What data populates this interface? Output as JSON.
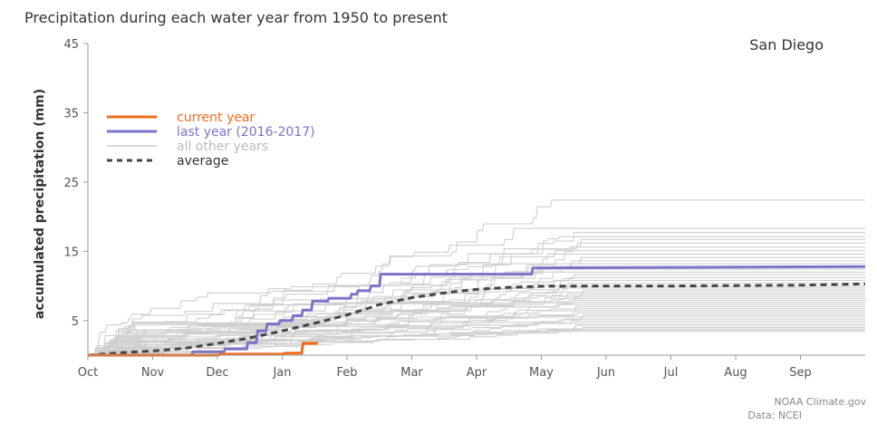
{
  "chart_data": {
    "type": "line",
    "title": "Precipitation during each water year from 1950 to present",
    "location": "San Diego",
    "ylabel": "accumulated precipitation (mm)",
    "xlabel": "",
    "ylim": [
      0,
      45
    ],
    "yticks": [
      5,
      15,
      25,
      35,
      45
    ],
    "x_unit": "months since Oct 1",
    "xlim": [
      0,
      12
    ],
    "xtick_labels": [
      "Oct",
      "Nov",
      "Dec",
      "Jan",
      "Feb",
      "Mar",
      "Apr",
      "May",
      "Jun",
      "Jul",
      "Aug",
      "Sep"
    ],
    "legend": {
      "placement": "top-left",
      "entries": [
        {
          "label": "current year",
          "color": "#f26c1b",
          "style": "solid"
        },
        {
          "label": "last year (2016-2017)",
          "color": "#7b74c9",
          "style": "solid"
        },
        {
          "label": "all other years",
          "color": "#cccccc",
          "style": "solid"
        },
        {
          "label": "average",
          "color": "#444444",
          "style": "dashed"
        }
      ]
    },
    "series": [
      {
        "name": "current year",
        "color": "#f26c1b",
        "points": [
          [
            0,
            0
          ],
          [
            2.0,
            0
          ],
          [
            2.05,
            0.15
          ],
          [
            3.0,
            0.15
          ],
          [
            3.05,
            0.3
          ],
          [
            3.3,
            0.3
          ],
          [
            3.32,
            1.7
          ],
          [
            3.55,
            1.7
          ]
        ]
      },
      {
        "name": "last year (2016-2017)",
        "color": "#7b74c9",
        "points": [
          [
            0,
            0
          ],
          [
            1.6,
            0
          ],
          [
            1.62,
            0.5
          ],
          [
            2.1,
            0.5
          ],
          [
            2.12,
            0.9
          ],
          [
            2.45,
            0.9
          ],
          [
            2.47,
            1.8
          ],
          [
            2.6,
            1.8
          ],
          [
            2.62,
            3.5
          ],
          [
            2.75,
            3.5
          ],
          [
            2.77,
            4.5
          ],
          [
            2.95,
            4.5
          ],
          [
            2.97,
            5.0
          ],
          [
            3.15,
            5.0
          ],
          [
            3.17,
            5.7
          ],
          [
            3.3,
            5.7
          ],
          [
            3.32,
            6.5
          ],
          [
            3.45,
            6.5
          ],
          [
            3.47,
            7.8
          ],
          [
            3.7,
            7.8
          ],
          [
            3.72,
            8.2
          ],
          [
            4.05,
            8.2
          ],
          [
            4.07,
            8.8
          ],
          [
            4.15,
            8.8
          ],
          [
            4.17,
            9.3
          ],
          [
            4.35,
            9.3
          ],
          [
            4.37,
            10.0
          ],
          [
            4.5,
            10.0
          ],
          [
            4.52,
            11.7
          ],
          [
            6.85,
            11.7
          ],
          [
            6.87,
            12.6
          ],
          [
            12,
            12.8
          ]
        ]
      },
      {
        "name": "average",
        "color": "#444444",
        "points": [
          [
            0,
            0
          ],
          [
            0.5,
            0.35
          ],
          [
            1.0,
            0.6
          ],
          [
            1.5,
            1.0
          ],
          [
            2.0,
            1.7
          ],
          [
            2.5,
            2.5
          ],
          [
            3.0,
            3.5
          ],
          [
            3.5,
            4.6
          ],
          [
            4.0,
            5.8
          ],
          [
            4.5,
            7.3
          ],
          [
            5.0,
            8.3
          ],
          [
            5.5,
            9.0
          ],
          [
            6.0,
            9.5
          ],
          [
            6.5,
            9.8
          ],
          [
            7.0,
            9.95
          ],
          [
            8.0,
            10.0
          ],
          [
            9.0,
            10.0
          ],
          [
            10.0,
            10.05
          ],
          [
            11.0,
            10.1
          ],
          [
            12,
            10.3
          ]
        ]
      }
    ],
    "other_years_final_totals": [
      22.4,
      18.3,
      17.7,
      17.1,
      16.7,
      16.2,
      15.6,
      15.1,
      14.6,
      14.1,
      13.6,
      13.2,
      12.8,
      12.4,
      12.0,
      11.6,
      11.2,
      10.8,
      10.4,
      10.0,
      9.7,
      9.4,
      9.1,
      8.8,
      8.5,
      8.2,
      7.9,
      7.6,
      7.3,
      7.0,
      6.7,
      6.4,
      6.1,
      5.8,
      5.5,
      5.2,
      4.9,
      4.6,
      4.3,
      4.0,
      3.8,
      3.6,
      3.4
    ],
    "credit": [
      "NOAA Climate.gov",
      "Data: NCEI"
    ]
  }
}
